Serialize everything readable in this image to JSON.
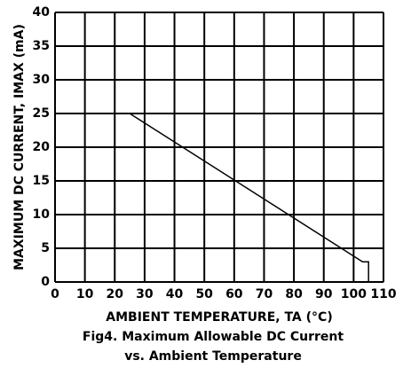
{
  "chart_data": {
    "type": "line",
    "x_label": "AMBIENT TEMPERATURE, TA (°C)",
    "y_label": "MAXIMUM DC CURRENT, IMAX (mA)",
    "caption": [
      "Fig4. Maximum Allowable DC Current",
      "vs. Ambient Temperature"
    ],
    "x": [
      25,
      103,
      105,
      105
    ],
    "series": [
      {
        "color": "#000000",
        "values": [
          25,
          3,
          3,
          0
        ]
      }
    ],
    "xlim": [
      0,
      110
    ],
    "xticks": [
      0,
      10,
      20,
      30,
      40,
      50,
      60,
      70,
      80,
      90,
      100,
      110
    ],
    "ylim": [
      0,
      40
    ],
    "yticks": [
      0,
      5,
      10,
      15,
      20,
      25,
      30,
      35,
      40
    ],
    "grid": true
  }
}
